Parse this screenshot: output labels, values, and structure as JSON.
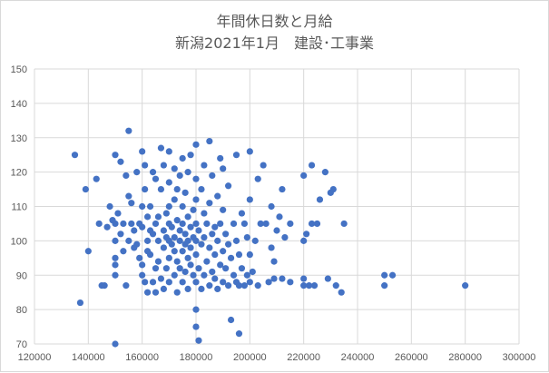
{
  "chart_data": {
    "type": "scatter",
    "title": "年間休日数と月給",
    "subtitle": "新潟2021年1月　建設･工事業",
    "xlabel": "",
    "ylabel": "",
    "xlim": [
      120000,
      300000
    ],
    "ylim": [
      70,
      150
    ],
    "xticks": [
      120000,
      140000,
      160000,
      180000,
      200000,
      220000,
      240000,
      260000,
      280000,
      300000
    ],
    "yticks": [
      70,
      80,
      90,
      100,
      110,
      120,
      130,
      140,
      150
    ],
    "grid": "horizontal and vertical",
    "marker_color": "#4472C4",
    "points": [
      [
        135000,
        125
      ],
      [
        137000,
        82
      ],
      [
        139000,
        115
      ],
      [
        140000,
        97
      ],
      [
        143000,
        118
      ],
      [
        144000,
        105
      ],
      [
        145000,
        87
      ],
      [
        146000,
        87
      ],
      [
        147000,
        104
      ],
      [
        148000,
        110
      ],
      [
        149000,
        106
      ],
      [
        150000,
        70
      ],
      [
        150000,
        125
      ],
      [
        150000,
        100
      ],
      [
        150000,
        95
      ],
      [
        150000,
        93
      ],
      [
        150000,
        90
      ],
      [
        150000,
        105
      ],
      [
        151000,
        108
      ],
      [
        152000,
        123
      ],
      [
        152000,
        102
      ],
      [
        153000,
        97
      ],
      [
        153000,
        105
      ],
      [
        154000,
        87
      ],
      [
        154000,
        119
      ],
      [
        155000,
        132
      ],
      [
        155000,
        100
      ],
      [
        155000,
        113
      ],
      [
        156000,
        105
      ],
      [
        156000,
        111
      ],
      [
        157000,
        98
      ],
      [
        157000,
        103
      ],
      [
        158000,
        99
      ],
      [
        158000,
        120
      ],
      [
        159000,
        105
      ],
      [
        159000,
        95
      ],
      [
        160000,
        90
      ],
      [
        160000,
        110
      ],
      [
        160000,
        93
      ],
      [
        160000,
        126
      ],
      [
        160000,
        104
      ],
      [
        161000,
        88
      ],
      [
        161000,
        115
      ],
      [
        161000,
        122
      ],
      [
        162000,
        85
      ],
      [
        162000,
        97
      ],
      [
        162000,
        100
      ],
      [
        162000,
        107
      ],
      [
        163000,
        96
      ],
      [
        163000,
        103
      ],
      [
        163000,
        110
      ],
      [
        164000,
        88
      ],
      [
        164000,
        102
      ],
      [
        164000,
        120
      ],
      [
        165000,
        85
      ],
      [
        165000,
        92
      ],
      [
        165000,
        105
      ],
      [
        165000,
        118
      ],
      [
        166000,
        94
      ],
      [
        166000,
        100
      ],
      [
        166000,
        107
      ],
      [
        167000,
        89
      ],
      [
        167000,
        115
      ],
      [
        167000,
        127
      ],
      [
        168000,
        86
      ],
      [
        168000,
        98
      ],
      [
        168000,
        103
      ],
      [
        168000,
        122
      ],
      [
        169000,
        92
      ],
      [
        169000,
        101
      ],
      [
        169000,
        108
      ],
      [
        170000,
        88
      ],
      [
        170000,
        95
      ],
      [
        170000,
        100
      ],
      [
        170000,
        105
      ],
      [
        170000,
        110
      ],
      [
        170000,
        117
      ],
      [
        170000,
        126
      ],
      [
        171000,
        99
      ],
      [
        171000,
        104
      ],
      [
        172000,
        90
      ],
      [
        172000,
        97
      ],
      [
        172000,
        101
      ],
      [
        172000,
        112
      ],
      [
        172000,
        121
      ],
      [
        173000,
        85
      ],
      [
        173000,
        94
      ],
      [
        173000,
        106
      ],
      [
        173000,
        115
      ],
      [
        174000,
        92
      ],
      [
        174000,
        100
      ],
      [
        174000,
        103
      ],
      [
        174000,
        119
      ],
      [
        175000,
        88
      ],
      [
        175000,
        97
      ],
      [
        175000,
        105
      ],
      [
        175000,
        110
      ],
      [
        175000,
        124
      ],
      [
        176000,
        91
      ],
      [
        176000,
        99
      ],
      [
        176000,
        102
      ],
      [
        176000,
        114
      ],
      [
        177000,
        86
      ],
      [
        177000,
        95
      ],
      [
        177000,
        100
      ],
      [
        177000,
        107
      ],
      [
        177000,
        120
      ],
      [
        178000,
        93
      ],
      [
        178000,
        98
      ],
      [
        178000,
        104
      ],
      [
        178000,
        125
      ],
      [
        179000,
        90
      ],
      [
        179000,
        101
      ],
      [
        179000,
        109
      ],
      [
        180000,
        75
      ],
      [
        180000,
        80
      ],
      [
        180000,
        88
      ],
      [
        180000,
        96
      ],
      [
        180000,
        100
      ],
      [
        180000,
        105
      ],
      [
        180000,
        112
      ],
      [
        180000,
        118
      ],
      [
        180000,
        128
      ],
      [
        181000,
        71
      ],
      [
        181000,
        92
      ],
      [
        181000,
        103
      ],
      [
        182000,
        86
      ],
      [
        182000,
        99
      ],
      [
        182000,
        115
      ],
      [
        183000,
        90
      ],
      [
        183000,
        101
      ],
      [
        183000,
        108
      ],
      [
        183000,
        122
      ],
      [
        184000,
        94
      ],
      [
        184000,
        105
      ],
      [
        185000,
        87
      ],
      [
        185000,
        98
      ],
      [
        185000,
        111
      ],
      [
        185000,
        129
      ],
      [
        186000,
        91
      ],
      [
        186000,
        102
      ],
      [
        186000,
        119
      ],
      [
        187000,
        89
      ],
      [
        187000,
        96
      ],
      [
        187000,
        104
      ],
      [
        188000,
        86
      ],
      [
        188000,
        100
      ],
      [
        188000,
        113
      ],
      [
        189000,
        93
      ],
      [
        189000,
        105
      ],
      [
        189000,
        124
      ],
      [
        190000,
        88
      ],
      [
        190000,
        97
      ],
      [
        190000,
        109
      ],
      [
        190000,
        121
      ],
      [
        191000,
        92
      ],
      [
        191000,
        102
      ],
      [
        192000,
        87
      ],
      [
        192000,
        99
      ],
      [
        192000,
        116
      ],
      [
        193000,
        77
      ],
      [
        193000,
        95
      ],
      [
        194000,
        90
      ],
      [
        194000,
        105
      ],
      [
        195000,
        88
      ],
      [
        195000,
        100
      ],
      [
        195000,
        125
      ],
      [
        196000,
        73
      ],
      [
        196000,
        87
      ],
      [
        196000,
        96
      ],
      [
        197000,
        92
      ],
      [
        197000,
        108
      ],
      [
        198000,
        87
      ],
      [
        198000,
        105
      ],
      [
        199000,
        90
      ],
      [
        199000,
        101
      ],
      [
        200000,
        88
      ],
      [
        200000,
        96
      ],
      [
        200000,
        112
      ],
      [
        200000,
        126
      ],
      [
        201000,
        91
      ],
      [
        202000,
        100
      ],
      [
        203000,
        87
      ],
      [
        203000,
        118
      ],
      [
        204000,
        105
      ],
      [
        205000,
        122
      ],
      [
        206000,
        105
      ],
      [
        207000,
        88
      ],
      [
        208000,
        110
      ],
      [
        208000,
        98
      ],
      [
        209000,
        94
      ],
      [
        209000,
        89
      ],
      [
        210000,
        103
      ],
      [
        211000,
        107
      ],
      [
        212000,
        89
      ],
      [
        212000,
        115
      ],
      [
        213000,
        101
      ],
      [
        215000,
        105
      ],
      [
        215000,
        88
      ],
      [
        220000,
        87
      ],
      [
        220000,
        89
      ],
      [
        220000,
        100
      ],
      [
        220000,
        119
      ],
      [
        221000,
        102
      ],
      [
        222000,
        87
      ],
      [
        223000,
        105
      ],
      [
        223000,
        122
      ],
      [
        224000,
        87
      ],
      [
        225000,
        105
      ],
      [
        226000,
        112
      ],
      [
        228000,
        120
      ],
      [
        229000,
        89
      ],
      [
        230000,
        114
      ],
      [
        231000,
        115
      ],
      [
        232000,
        87
      ],
      [
        234000,
        85
      ],
      [
        235000,
        105
      ],
      [
        250000,
        87
      ],
      [
        250000,
        90
      ],
      [
        253000,
        90
      ],
      [
        280000,
        87
      ]
    ]
  }
}
